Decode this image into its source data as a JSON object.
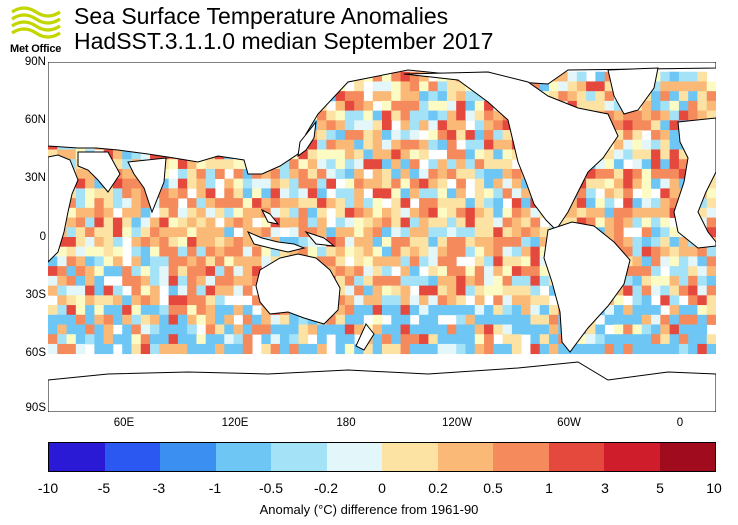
{
  "logo": {
    "text": "Met Office",
    "icon": "met-office-wave-logo",
    "color": "#c4d600"
  },
  "title": {
    "line1": "Sea Surface Temperature Anomalies",
    "line2": "HadSST.3.1.1.0 median September 2017"
  },
  "map": {
    "lat_labels": [
      "90N",
      "60N",
      "30N",
      "0",
      "30S",
      "60S",
      "90S"
    ],
    "lon_labels": [
      "60E",
      "120E",
      "180",
      "120W",
      "60W",
      "0"
    ],
    "land_color": "#ffffff",
    "coast_color": "#000000"
  },
  "colorbar": {
    "tick_labels": [
      "-10",
      "-5",
      "-3",
      "-1",
      "-0.5",
      "-0.2",
      "0",
      "0.2",
      "0.5",
      "1",
      "3",
      "5",
      "10"
    ],
    "colors": [
      "#2a1ad6",
      "#2b58f0",
      "#3b8ff0",
      "#6ec6f5",
      "#a4e2f7",
      "#e3f6fa",
      "#fdfbc4",
      "#fde3a3",
      "#fbb978",
      "#f58a5c",
      "#e5483c",
      "#cf1d2c",
      "#a10b1e"
    ],
    "caption": "Anomaly (°C) difference from 1961-90"
  }
}
